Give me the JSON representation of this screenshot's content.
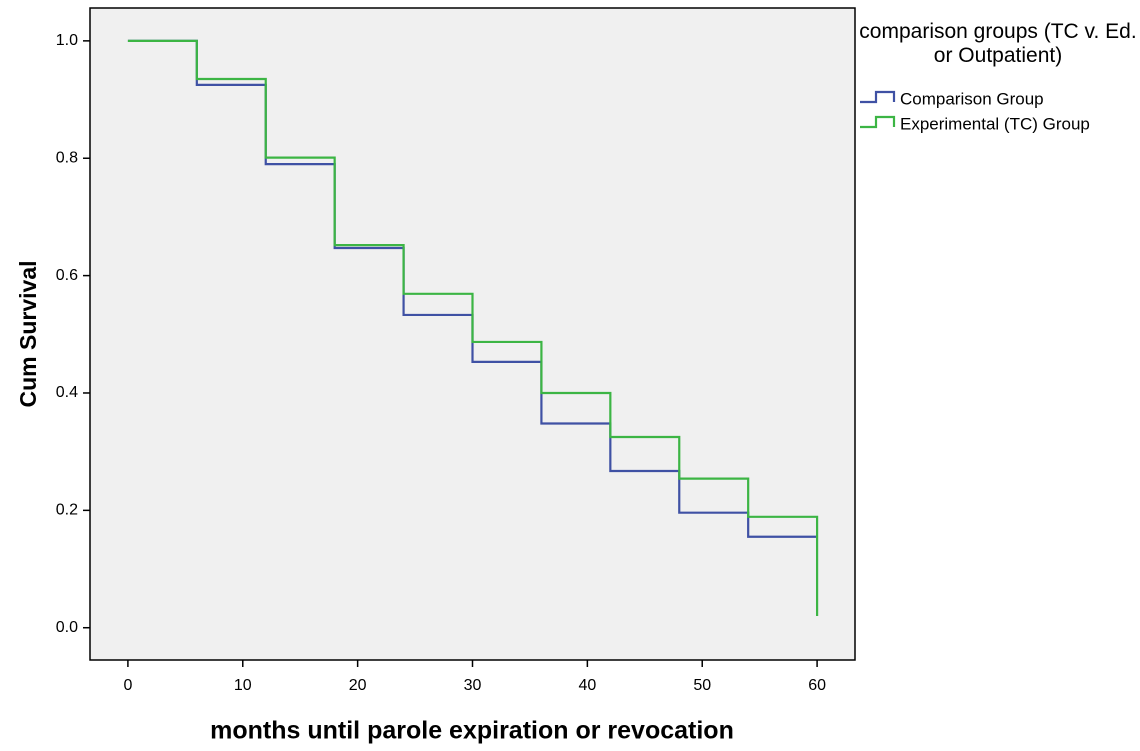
{
  "chart_data": {
    "type": "step",
    "x_label": "months until parole expiration or revocation",
    "y_label": "Cum Survival",
    "legend_title": "comparison groups (TC v. Ed. or Outpatient)",
    "legend_position": "right",
    "xlim": [
      -3.3,
      63.3
    ],
    "ylim": [
      -0.055,
      1.056
    ],
    "xticks": [
      0,
      10,
      20,
      30,
      40,
      50,
      60
    ],
    "yticks": [
      {
        "value": 0,
        "label": "0.0"
      },
      0.2,
      0.4,
      0.6,
      0.8,
      {
        "value": 1,
        "label": "1.0"
      }
    ],
    "x": [
      0,
      6,
      12,
      18,
      24,
      30,
      36,
      42,
      48,
      54,
      60
    ],
    "series": [
      {
        "name": "Comparison Group",
        "color": "#3f51a4",
        "values": [
          1.0,
          0.925,
          0.79,
          0.647,
          0.533,
          0.453,
          0.348,
          0.267,
          0.196,
          0.155,
          0.155
        ]
      },
      {
        "name": "Experimental (TC) Group",
        "color": "#3cb544",
        "values": [
          1.0,
          0.935,
          0.801,
          0.652,
          0.569,
          0.487,
          0.4,
          0.325,
          0.254,
          0.189,
          0.02
        ]
      }
    ]
  }
}
